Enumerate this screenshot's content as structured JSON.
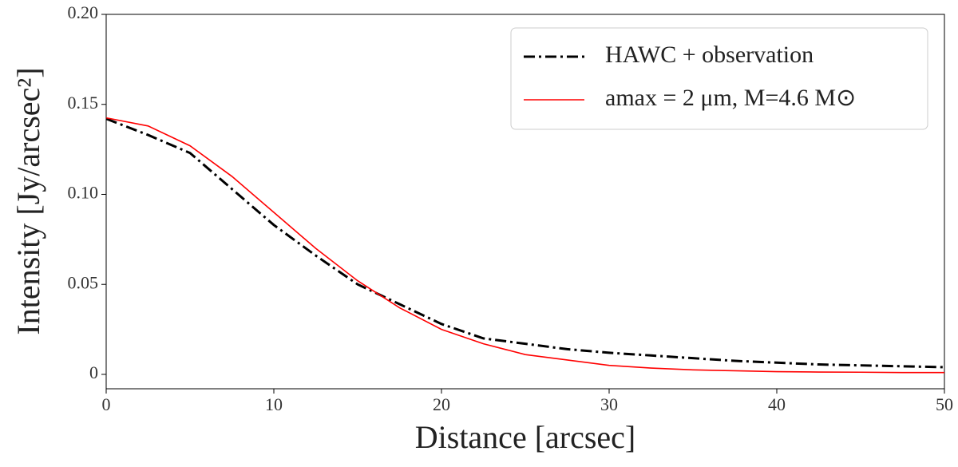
{
  "chart_data": {
    "type": "line",
    "x_label": "Distance [arcsec]",
    "y_label": "Intensity [Jy/arcsec²]",
    "x": [
      0,
      2.5,
      5,
      7.5,
      10,
      12.5,
      15,
      17.5,
      20,
      22.5,
      25,
      27.5,
      30,
      32.5,
      35,
      37.5,
      40,
      42.5,
      45,
      47.5,
      50
    ],
    "series": [
      {
        "name": "HAWC + observation",
        "color": "#000000",
        "dash": "dashdot",
        "values": [
          0.142,
          0.133,
          0.123,
          0.103,
          0.083,
          0.066,
          0.05,
          0.039,
          0.028,
          0.02,
          0.017,
          0.014,
          0.012,
          0.0105,
          0.009,
          0.0075,
          0.0065,
          0.0055,
          0.005,
          0.0045,
          0.004
        ]
      },
      {
        "name": "amax = 2 μm, M=4.6 M⊙",
        "color": "#ff0000",
        "dash": "solid",
        "values": [
          0.1425,
          0.138,
          0.127,
          0.11,
          0.09,
          0.07,
          0.052,
          0.037,
          0.025,
          0.017,
          0.011,
          0.008,
          0.005,
          0.0035,
          0.0025,
          0.002,
          0.0015,
          0.0013,
          0.0012,
          0.001,
          0.001
        ]
      }
    ],
    "xlim": [
      0,
      50
    ],
    "xticks": [
      0,
      10,
      20,
      30,
      40,
      50
    ],
    "ylim": [
      -0.008,
      0.2
    ],
    "yticks": [
      0,
      {
        "value": 0.05,
        "label": "0.05"
      },
      {
        "value": 0.1,
        "label": "0.10"
      },
      {
        "value": 0.15,
        "label": "0.15"
      },
      {
        "value": 0.2,
        "label": "0.20"
      }
    ],
    "legend": "upper right",
    "grid": false
  }
}
